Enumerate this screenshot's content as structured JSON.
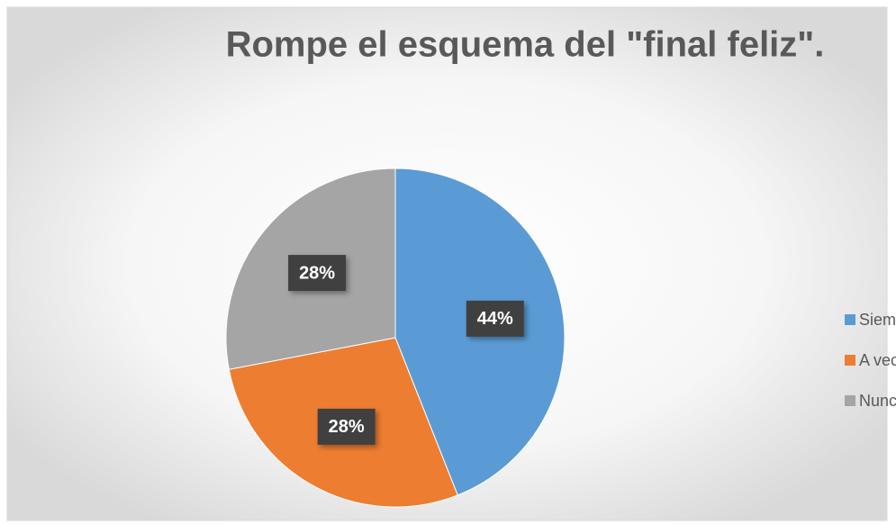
{
  "chart_data": {
    "type": "pie",
    "title": "Rompe el esquema del \"final feliz\".",
    "categories": [
      "Siempre",
      "A veces",
      "Nunca"
    ],
    "values": [
      44,
      28,
      28
    ],
    "value_labels": [
      "44%",
      "28%",
      "28%"
    ],
    "colors": [
      "#5b9bd5",
      "#ed7d31",
      "#a5a5a5"
    ],
    "legend": "right"
  }
}
